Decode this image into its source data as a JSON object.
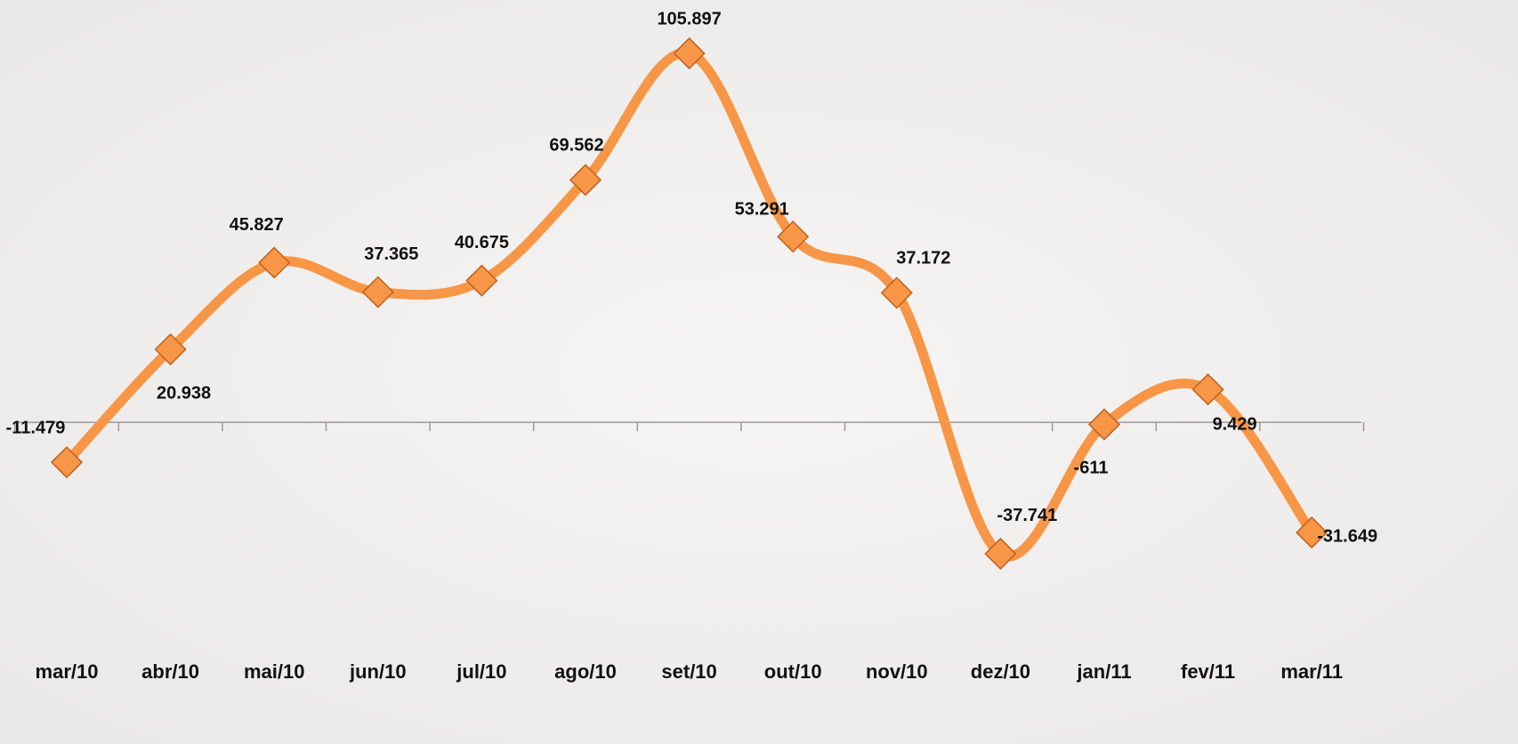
{
  "chart_data": {
    "type": "line",
    "categories": [
      "mar/10",
      "abr/10",
      "mai/10",
      "jun/10",
      "jul/10",
      "ago/10",
      "set/10",
      "out/10",
      "nov/10",
      "dez/10",
      "jan/11",
      "fev/11",
      "mar/11"
    ],
    "series": [
      {
        "color": "#f79646",
        "values": [
          -11479,
          20938,
          45827,
          37365,
          40675,
          69562,
          105897,
          53291,
          37172,
          -37741,
          -611,
          9429,
          -31649
        ],
        "value_labels": [
          "-11.479",
          "20.938",
          "45.827",
          "37.365",
          "40.675",
          "69.562",
          "105.897",
          "53.291",
          "37.172",
          "-37.741",
          "-611",
          "9.429",
          "-31.649"
        ]
      }
    ],
    "ylim": [
      -50000,
      110000
    ],
    "smooth": true
  }
}
